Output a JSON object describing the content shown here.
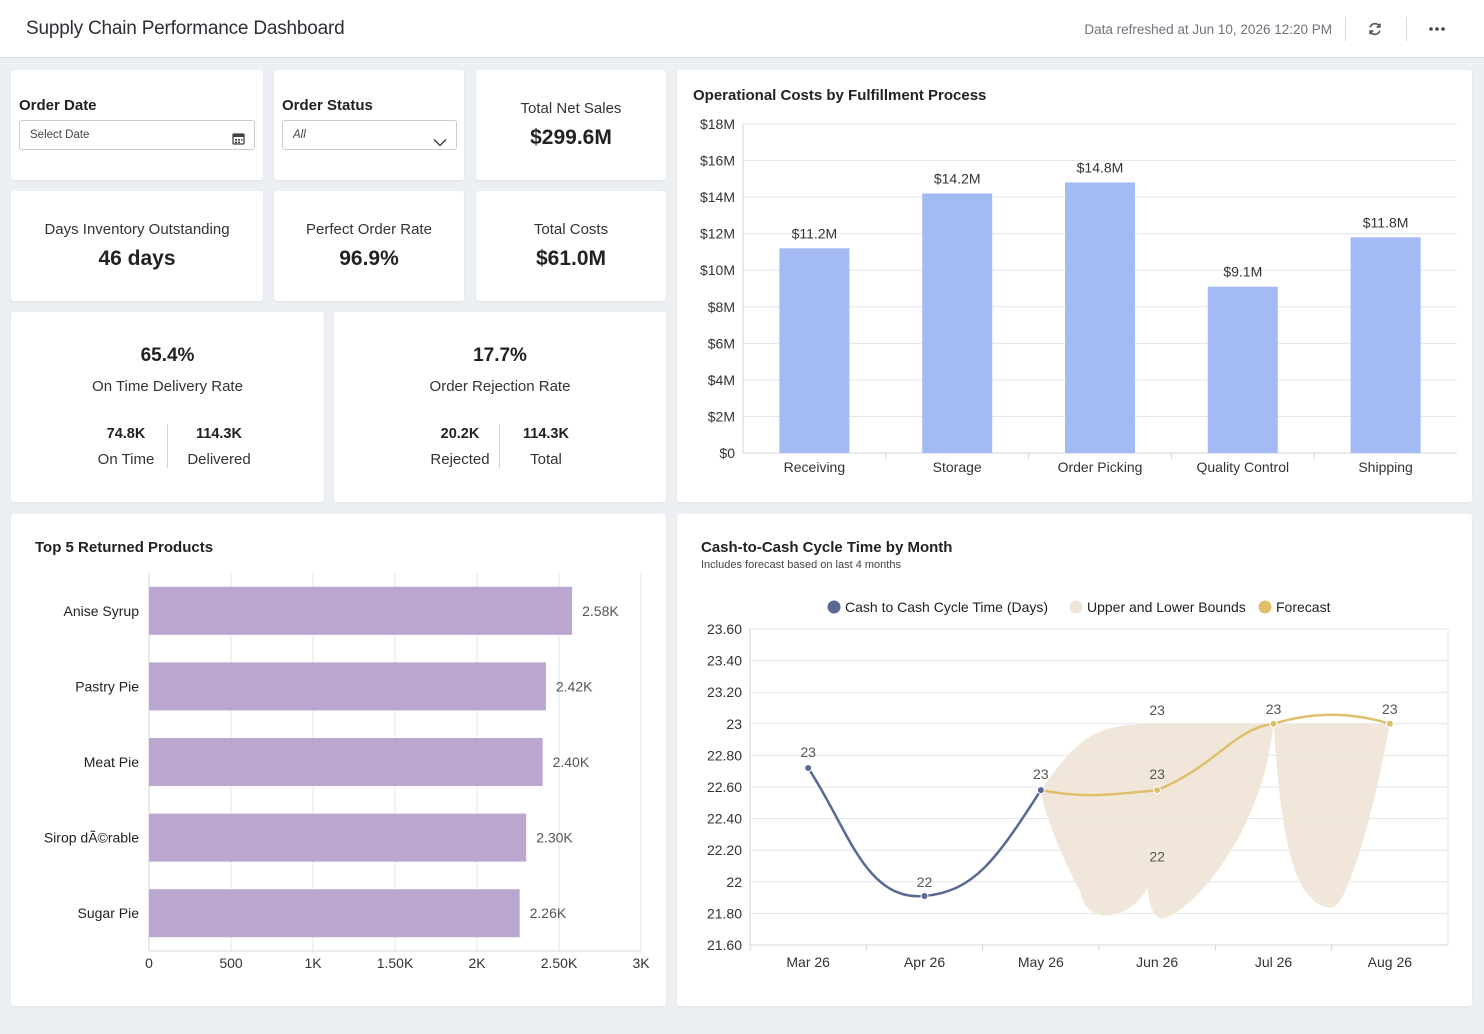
{
  "header": {
    "title": "Supply Chain Performance Dashboard",
    "refreshed": "Data refreshed at Jun 10, 2026 12:20 PM",
    "refresh_icon": "refresh-icon",
    "more_icon": "more-options-icon"
  },
  "filters": {
    "order_date": {
      "label": "Order Date",
      "placeholder": "Select Date",
      "icon": "calendar-icon"
    },
    "order_status": {
      "label": "Order Status",
      "value": "All",
      "icon": "chevron-down-icon"
    }
  },
  "kpis": {
    "total_net_sales": {
      "label": "Total Net Sales",
      "value": "$299.6M"
    },
    "days_inventory": {
      "label": "Days Inventory Outstanding",
      "value": "46 days"
    },
    "perfect_order": {
      "label": "Perfect Order Rate",
      "value": "96.9%"
    },
    "total_costs": {
      "label": "Total Costs",
      "value": "$61.0M"
    }
  },
  "on_time": {
    "value": "65.4%",
    "label": "On Time Delivery Rate",
    "left_value": "74.8K",
    "left_label": "On Time",
    "right_value": "114.3K",
    "right_label": "Delivered"
  },
  "rejection": {
    "value": "17.7%",
    "label": "Order Rejection Rate",
    "left_value": "20.2K",
    "left_label": "Rejected",
    "right_value": "114.3K",
    "right_label": "Total"
  },
  "colors": {
    "ops_bar": "#a3baf5",
    "returns_bar": "#bba6cf",
    "actual_line": "#5a6894",
    "forecast_line": "#dfbf6a",
    "bounds_fill": "#efe6d8"
  },
  "chart_data": [
    {
      "type": "bar",
      "title": "Operational Costs by Fulfillment Process",
      "categories": [
        "Receiving",
        "Storage",
        "Order Picking",
        "Quality Control",
        "Shipping"
      ],
      "values": [
        11.2,
        14.2,
        14.8,
        9.1,
        11.8
      ],
      "data_labels": [
        "$11.2M",
        "$14.2M",
        "$14.8M",
        "$9.1M",
        "$11.8M"
      ],
      "ylim": [
        0,
        18
      ],
      "yticks": [
        0,
        2,
        4,
        6,
        8,
        10,
        12,
        14,
        16,
        18
      ],
      "ytick_labels": [
        "$0",
        "$2M",
        "$4M",
        "$6M",
        "$8M",
        "$10M",
        "$12M",
        "$14M",
        "$16M",
        "$18M"
      ],
      "grid": true
    },
    {
      "type": "bar",
      "orientation": "horizontal",
      "title": "Top 5 Returned Products",
      "categories": [
        "Anise Syrup",
        "Pastry Pie",
        "Meat Pie",
        "Sirop dÃ©rable",
        "Sugar Pie"
      ],
      "values": [
        2580,
        2420,
        2400,
        2300,
        2260
      ],
      "data_labels": [
        "2.58K",
        "2.42K",
        "2.40K",
        "2.30K",
        "2.26K"
      ],
      "xlim": [
        0,
        3000
      ],
      "xticks": [
        0,
        500,
        1000,
        1500,
        2000,
        2500,
        3000
      ],
      "xtick_labels": [
        "0",
        "500",
        "1K",
        "1.50K",
        "2K",
        "2.50K",
        "3K"
      ],
      "grid": true
    },
    {
      "type": "line",
      "title": "Cash-to-Cash Cycle Time by Month",
      "subtitle": "Includes forecast based on last 4 months",
      "categories": [
        "Mar 26",
        "Apr 26",
        "May 26",
        "Jun 26",
        "Jul 26",
        "Aug 26"
      ],
      "legend": [
        "Cash to Cash Cycle Time (Days)",
        "Upper and Lower Bounds",
        "Forecast"
      ],
      "legend_position": "top",
      "series": [
        {
          "name": "Cash to Cash Cycle Time (Days)",
          "values": [
            22.72,
            21.91,
            22.58,
            null,
            null,
            null
          ],
          "labels": [
            "23",
            "22",
            "23",
            "",
            "",
            ""
          ]
        },
        {
          "name": "Forecast",
          "values": [
            null,
            null,
            22.58,
            22.58,
            23.0,
            23.0
          ],
          "labels": [
            "",
            "",
            "",
            "23",
            "23",
            "23"
          ]
        },
        {
          "name": "Upper and Lower Bounds",
          "upper": [
            null,
            null,
            22.58,
            23.0,
            23.0,
            23.0
          ],
          "lower": [
            null,
            null,
            22.58,
            21.8,
            23.0,
            21.9
          ],
          "labels": [
            "",
            "",
            "",
            "23",
            "",
            ""
          ],
          "lower_labels": [
            "",
            "",
            "",
            "22",
            "",
            ""
          ]
        }
      ],
      "ylim": [
        21.6,
        23.6
      ],
      "yticks": [
        21.6,
        21.8,
        22.0,
        22.2,
        22.4,
        22.6,
        22.8,
        23.0,
        23.2,
        23.4,
        23.6
      ],
      "ytick_labels": [
        "21.60",
        "21.80",
        "22",
        "22.20",
        "22.40",
        "22.60",
        "22.80",
        "23",
        "23.20",
        "23.40",
        "23.60"
      ],
      "grid": true
    }
  ]
}
